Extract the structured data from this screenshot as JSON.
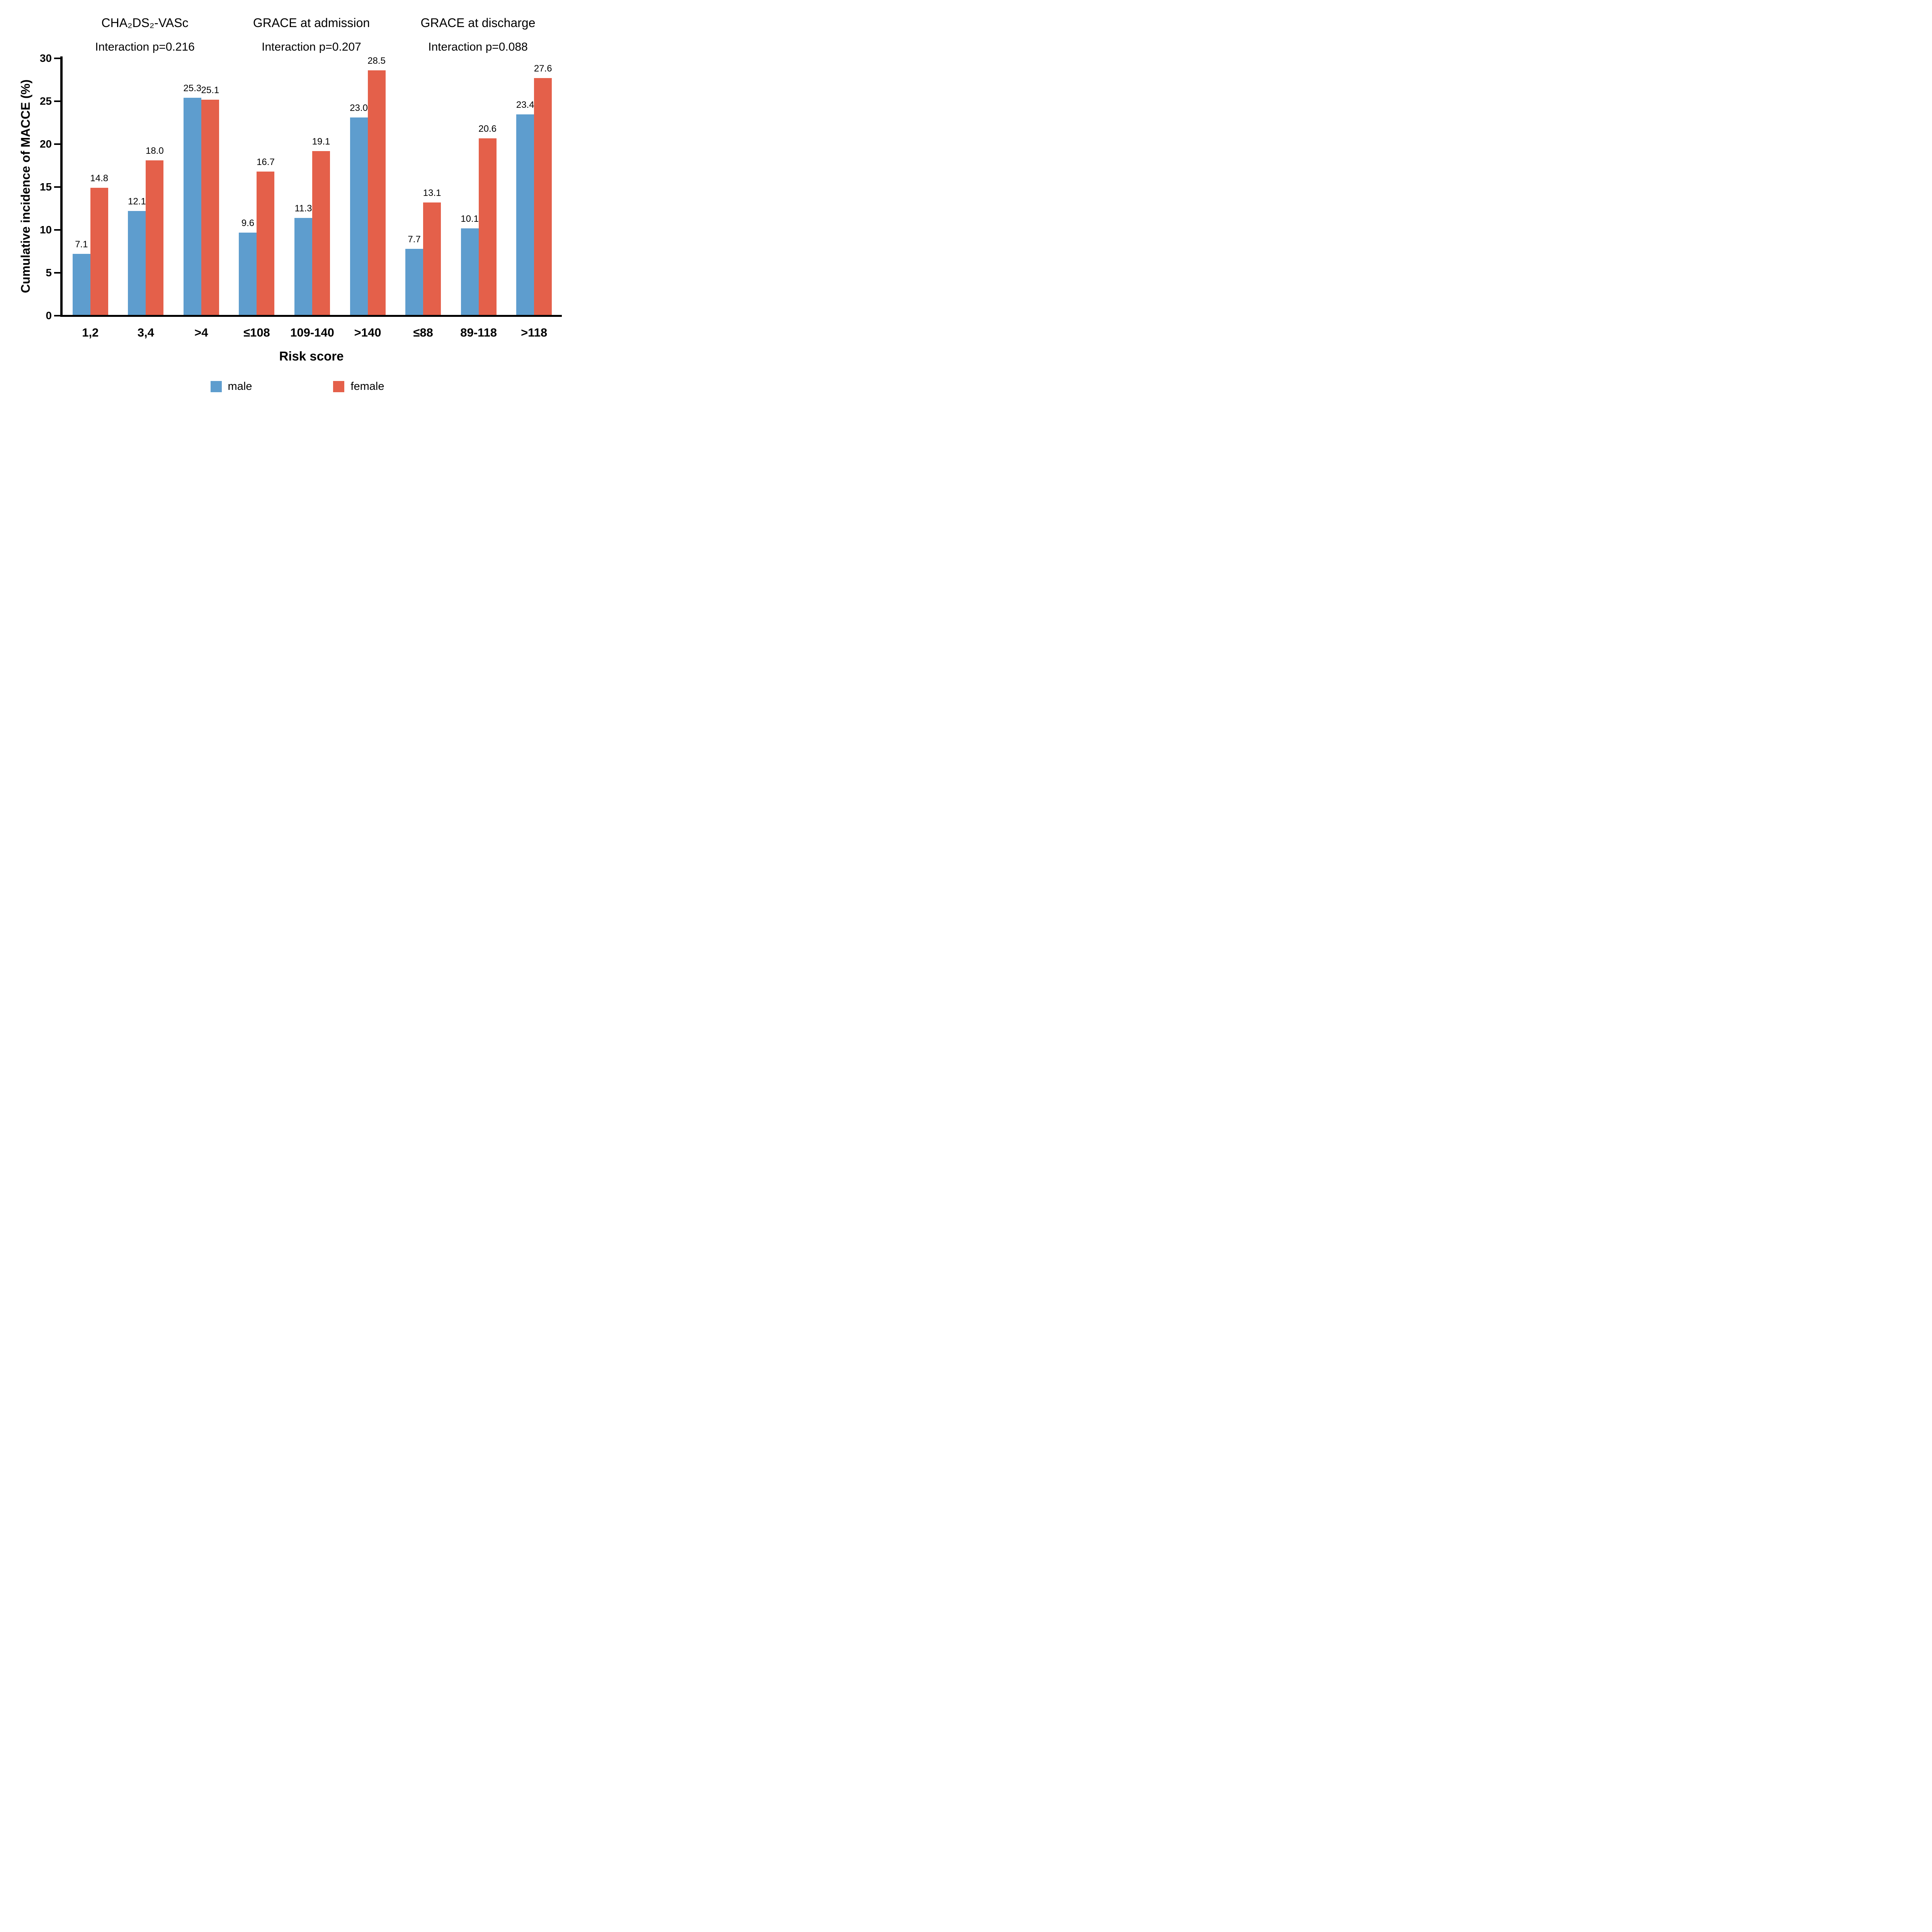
{
  "chart_data": {
    "type": "bar",
    "ylabel": "Cumulative incidence of MACCE (%)",
    "xlabel": "Risk score",
    "ylim": [
      0,
      30
    ],
    "yticks": [
      0,
      5,
      10,
      15,
      20,
      25,
      30
    ],
    "grid": false,
    "legend_position": "bottom",
    "series_names": [
      "male",
      "female"
    ],
    "colors": {
      "male": "#5E9DCE",
      "female": "#E4604A"
    },
    "panels": [
      {
        "title": "CHA₂DS₂-VASc",
        "interaction": "Interaction p=0.216",
        "categories": [
          "1,2",
          "3,4",
          ">4"
        ],
        "series": [
          {
            "name": "male",
            "values": [
              7.1,
              12.1,
              25.3
            ],
            "labels": [
              "7.1",
              "12.1",
              "25.3"
            ]
          },
          {
            "name": "female",
            "values": [
              14.8,
              18.0,
              25.1
            ],
            "labels": [
              "14.8",
              "18.0",
              "25.1"
            ]
          }
        ]
      },
      {
        "title": "GRACE at admission",
        "interaction": "Interaction p=0.207",
        "categories": [
          "≤108",
          "109-140",
          ">140"
        ],
        "series": [
          {
            "name": "male",
            "values": [
              9.6,
              11.3,
              23.0
            ],
            "labels": [
              "9.6",
              "11.3",
              "23.0"
            ]
          },
          {
            "name": "female",
            "values": [
              16.7,
              19.1,
              28.5
            ],
            "labels": [
              "16.7",
              "19.1",
              "28.5"
            ]
          }
        ]
      },
      {
        "title": "GRACE at discharge",
        "interaction": "Interaction p=0.088",
        "categories": [
          "≤88",
          "89-118",
          ">118"
        ],
        "series": [
          {
            "name": "male",
            "values": [
              7.7,
              10.1,
              23.4
            ],
            "labels": [
              "7.7",
              "10.1",
              "23.4"
            ]
          },
          {
            "name": "female",
            "values": [
              13.1,
              20.6,
              27.6
            ],
            "labels": [
              "13.1",
              "20.6",
              "27.6"
            ]
          }
        ]
      }
    ]
  }
}
